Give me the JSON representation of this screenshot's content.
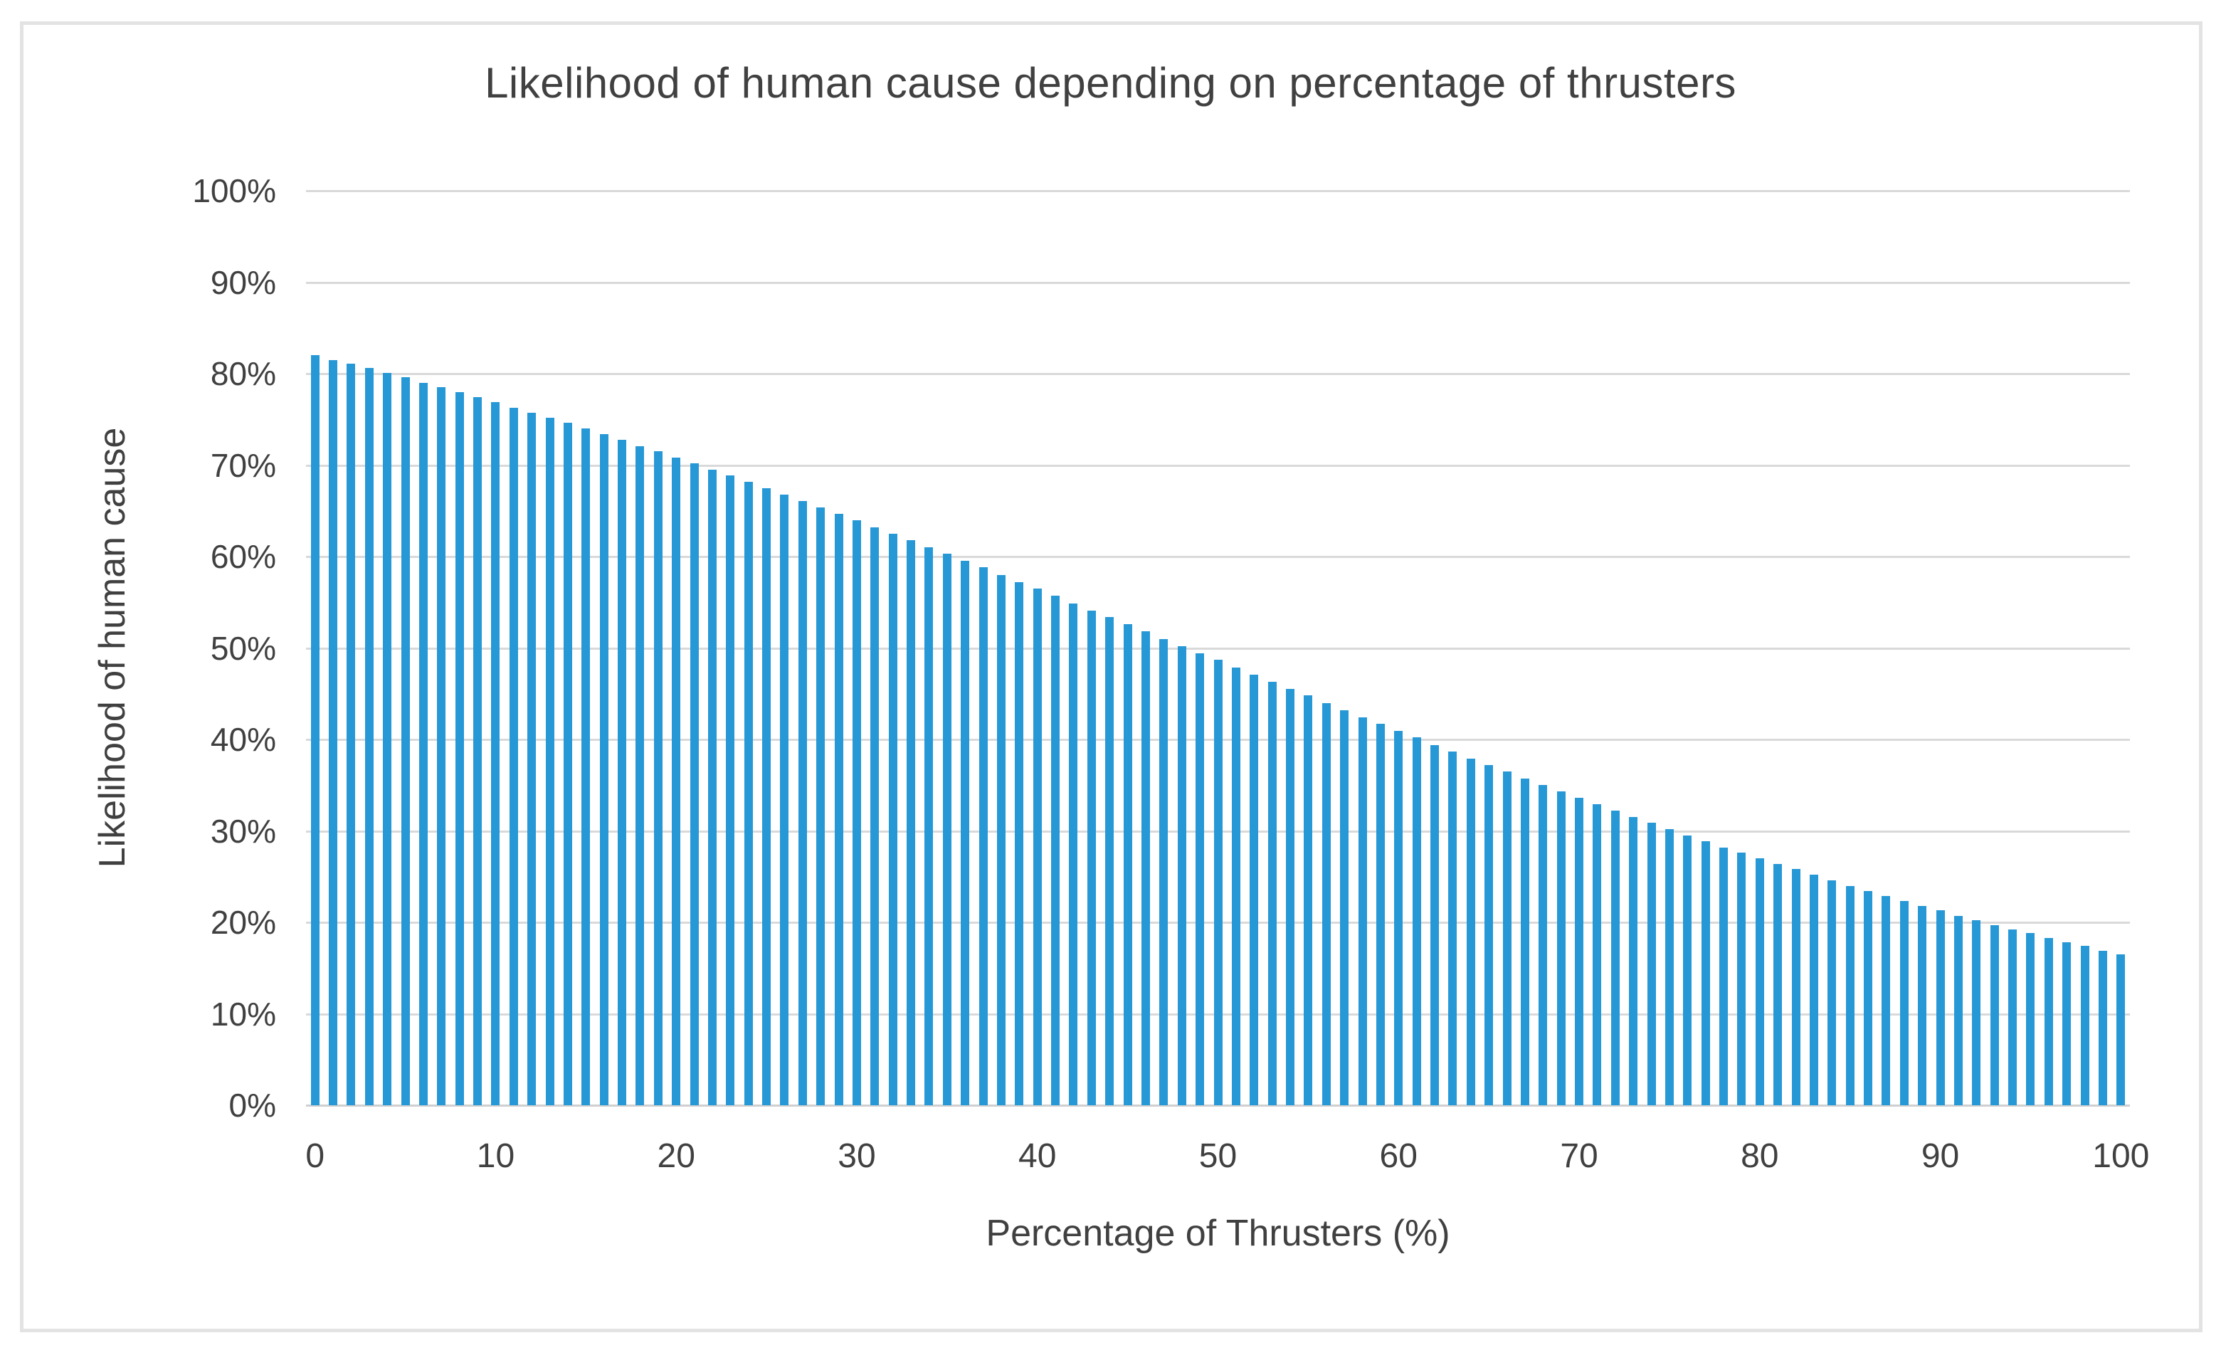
{
  "page": {
    "background": "#ffffff",
    "frame_border_color": "#e3e3e3"
  },
  "chart_data": {
    "type": "bar",
    "title": "Likelihood of human cause depending on percentage of thrusters",
    "xlabel": "Percentage of Thrusters (%)",
    "ylabel": "Likelihood of human cause",
    "ylim": [
      0,
      100
    ],
    "grid": "horizontal",
    "legend": "none",
    "bar_color": "#2798d6",
    "gridline_color": "#d9d9d9",
    "axis_line_color": "#cfcfcf",
    "text_color": "#404040",
    "y_ticks": [
      "0%",
      "10%",
      "20%",
      "30%",
      "40%",
      "50%",
      "60%",
      "70%",
      "80%",
      "90%",
      "100%"
    ],
    "x_ticks": [
      0,
      10,
      20,
      30,
      40,
      50,
      60,
      70,
      80,
      90,
      100
    ],
    "x": [
      0,
      1,
      2,
      3,
      4,
      5,
      6,
      7,
      8,
      9,
      10,
      11,
      12,
      13,
      14,
      15,
      16,
      17,
      18,
      19,
      20,
      21,
      22,
      23,
      24,
      25,
      26,
      27,
      28,
      29,
      30,
      31,
      32,
      33,
      34,
      35,
      36,
      37,
      38,
      39,
      40,
      41,
      42,
      43,
      44,
      45,
      46,
      47,
      48,
      49,
      50,
      51,
      52,
      53,
      54,
      55,
      56,
      57,
      58,
      59,
      60,
      61,
      62,
      63,
      64,
      65,
      66,
      67,
      68,
      69,
      70,
      71,
      72,
      73,
      74,
      75,
      76,
      77,
      78,
      79,
      80,
      81,
      82,
      83,
      84,
      85,
      86,
      87,
      88,
      89,
      90,
      91,
      92,
      93,
      94,
      95,
      96,
      97,
      98,
      99,
      100
    ],
    "values": [
      82.0,
      81.5,
      81.1,
      80.6,
      80.1,
      79.6,
      79.0,
      78.5,
      78.0,
      77.4,
      76.9,
      76.3,
      75.7,
      75.2,
      74.6,
      74.0,
      73.4,
      72.8,
      72.1,
      71.5,
      70.8,
      70.2,
      69.5,
      68.9,
      68.2,
      67.5,
      66.8,
      66.1,
      65.4,
      64.7,
      64.0,
      63.2,
      62.5,
      61.8,
      61.0,
      60.3,
      59.5,
      58.8,
      58.0,
      57.2,
      56.5,
      55.7,
      54.9,
      54.1,
      53.4,
      52.6,
      51.8,
      51.0,
      50.2,
      49.4,
      48.7,
      47.9,
      47.1,
      46.3,
      45.5,
      44.8,
      44.0,
      43.2,
      42.4,
      41.7,
      40.9,
      40.2,
      39.4,
      38.7,
      37.9,
      37.2,
      36.5,
      35.7,
      35.0,
      34.3,
      33.6,
      32.9,
      32.2,
      31.5,
      30.9,
      30.2,
      29.5,
      28.9,
      28.2,
      27.6,
      27.0,
      26.4,
      25.8,
      25.2,
      24.6,
      24.0,
      23.4,
      22.9,
      22.3,
      21.8,
      21.3,
      20.7,
      20.2,
      19.7,
      19.2,
      18.8,
      18.3,
      17.8,
      17.4,
      16.9,
      16.5
    ]
  }
}
